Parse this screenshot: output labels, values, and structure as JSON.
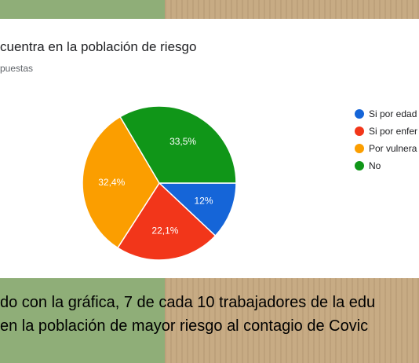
{
  "chart_data": {
    "type": "pie",
    "title": "cuentra en la población de riesgo",
    "subtitle": "puestas",
    "slices": [
      {
        "label": "Si por edad",
        "value": 12,
        "value_label": "12%",
        "color": "#1565d8"
      },
      {
        "label": "Si por enfer",
        "value": 22.1,
        "value_label": "22,1%",
        "color": "#f2361a"
      },
      {
        "label": "Por vulnera",
        "value": 32.4,
        "value_label": "32,4%",
        "color": "#fb9e00"
      },
      {
        "label": "No",
        "value": 33.5,
        "value_label": "33,5%",
        "color": "#109618"
      }
    ],
    "legend_position": "right"
  },
  "caption": {
    "line1": "do con la gráfica, 7 de cada 10 trabajadores de la edu",
    "line2": "en la población de mayor riesgo al contagio de Covic"
  }
}
